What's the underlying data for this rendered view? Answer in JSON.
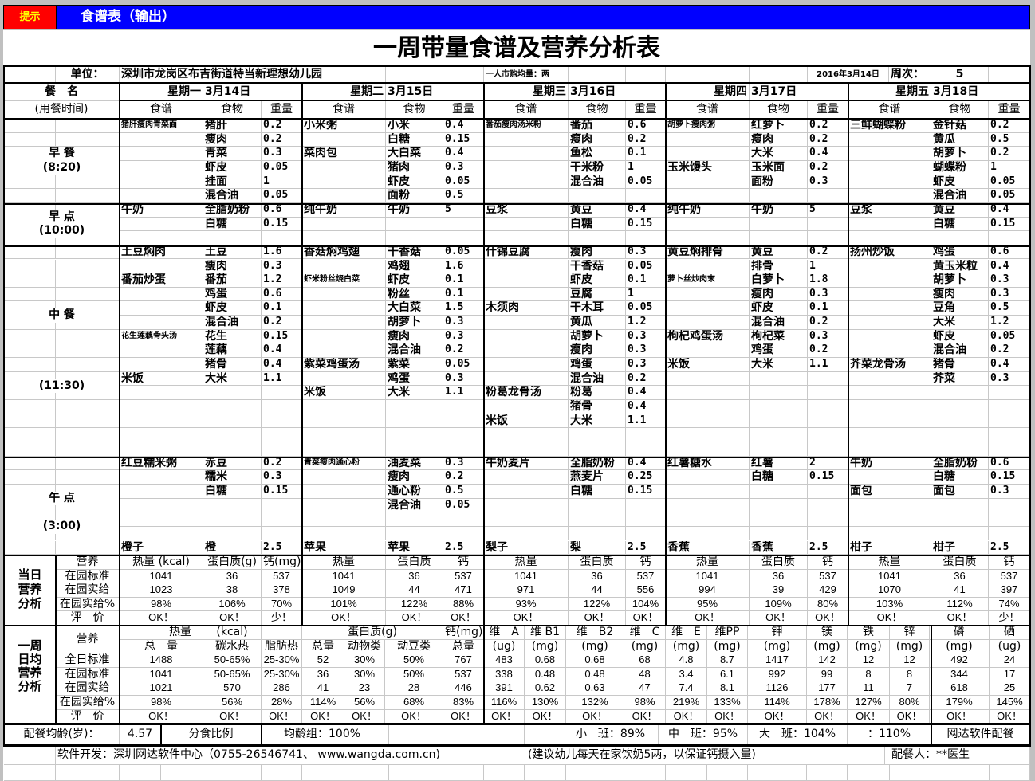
{
  "window": {
    "tip_button": "提示",
    "title": "食谱表（输出）",
    "accent": "#0000ff",
    "tip_color": "#ff0000"
  },
  "report": {
    "title": "一周带量食谱及营养分析表",
    "unit_label": "单位：",
    "unit_name": "深圳市龙岗区布吉街道特当新理想幼儿园",
    "purchase_note": "一人市购均量：两",
    "date": "2016年3月14日",
    "week_label": "周次：",
    "week_no": "5",
    "meal_header": "餐　名",
    "meal_time_header": "(用餐时间)",
    "col_recipe": "食谱",
    "col_food": "食物",
    "col_weight": "重量"
  },
  "meals": [
    {
      "key": "breakfast",
      "name": "早 餐",
      "time": "(8:20)"
    },
    {
      "key": "snack",
      "name": "早 点",
      "time": "(10:00)"
    },
    {
      "key": "lunch",
      "name": "中 餐",
      "time": "(11:30)"
    },
    {
      "key": "afternoon",
      "name": "午 点",
      "time": "(3:00)"
    }
  ],
  "days": [
    {
      "weekday": "星期一",
      "date": "3月14日",
      "breakfast": [
        [
          "猪肝瘦肉青菜面",
          "猪肝",
          "0.2"
        ],
        [
          "",
          "瘦肉",
          "0.2"
        ],
        [
          "",
          "青菜",
          "0.3"
        ],
        [
          "",
          "虾皮",
          "0.05"
        ],
        [
          "",
          "挂面",
          "1"
        ],
        [
          "",
          "混合油",
          "0.05"
        ]
      ],
      "snack": [
        [
          "牛奶",
          "全脂奶粉",
          "0.6"
        ],
        [
          "",
          "白糖",
          "0.15"
        ]
      ],
      "lunch": [
        [
          "土豆焖肉",
          "土豆",
          "1.6"
        ],
        [
          "",
          "瘦肉",
          "0.3"
        ],
        [
          "番茄炒蛋",
          "番茄",
          "1.2"
        ],
        [
          "",
          "鸡蛋",
          "0.6"
        ],
        [
          "",
          "虾皮",
          "0.1"
        ],
        [
          "",
          "混合油",
          "0.2"
        ],
        [
          "花生莲藕骨头汤",
          "花生",
          "0.15"
        ],
        [
          "",
          "莲藕",
          "0.4"
        ],
        [
          "",
          "猪骨",
          "0.4"
        ],
        [
          "米饭",
          "大米",
          "1.1"
        ]
      ],
      "afternoon": [
        [
          "红豆糯米粥",
          "赤豆",
          "0.2"
        ],
        [
          "",
          "糯米",
          "0.3"
        ],
        [
          "",
          "白糖",
          "0.15"
        ],
        [
          "",
          "",
          ""
        ],
        [
          "",
          "",
          ""
        ],
        [
          "",
          "",
          ""
        ],
        [
          "橙子",
          "橙",
          "2.5"
        ]
      ],
      "nutrition": {
        "headers": [
          "热量 (kcal)",
          "蛋白质(g)",
          "钙(mg)"
        ],
        "standard": [
          "1041",
          "36",
          "537"
        ],
        "actual": [
          "1023",
          "38",
          "378"
        ],
        "percent": [
          "98%",
          "106%",
          "70%"
        ],
        "evaluation": [
          "OK！",
          "OK！",
          "少！"
        ]
      }
    },
    {
      "weekday": "星期二",
      "date": "3月15日",
      "breakfast": [
        [
          "小米粥",
          "小米",
          "0.4"
        ],
        [
          "",
          "白糖",
          "0.15"
        ],
        [
          "菜肉包",
          "大白菜",
          "0.4"
        ],
        [
          "",
          "猪肉",
          "0.3"
        ],
        [
          "",
          "虾皮",
          "0.05"
        ],
        [
          "",
          "面粉",
          "0.5"
        ]
      ],
      "snack": [
        [
          "纯牛奶",
          "牛奶",
          "5"
        ]
      ],
      "lunch": [
        [
          "香菇焖鸡翅",
          "干香菇",
          "0.05"
        ],
        [
          "",
          "鸡翅",
          "1.6"
        ],
        [
          "虾米粉丝烧白菜",
          "虾皮",
          "0.1"
        ],
        [
          "",
          "粉丝",
          "0.1"
        ],
        [
          "",
          "大白菜",
          "1.5"
        ],
        [
          "",
          "胡萝卜",
          "0.3"
        ],
        [
          "",
          "瘦肉",
          "0.3"
        ],
        [
          "",
          "混合油",
          "0.2"
        ],
        [
          "紫菜鸡蛋汤",
          "紫菜",
          "0.05"
        ],
        [
          "",
          "鸡蛋",
          "0.3"
        ],
        [
          "米饭",
          "大米",
          "1.1"
        ]
      ],
      "afternoon": [
        [
          "青菜瘦肉通心粉",
          "油麦菜",
          "0.3"
        ],
        [
          "",
          "瘦肉",
          "0.2"
        ],
        [
          "",
          "通心粉",
          "0.5"
        ],
        [
          "",
          "混合油",
          "0.05"
        ],
        [
          "",
          "",
          ""
        ],
        [
          "",
          "",
          ""
        ],
        [
          "苹果",
          "苹果",
          "2.5"
        ]
      ],
      "nutrition": {
        "headers": [
          "热量",
          "蛋白质",
          "钙"
        ],
        "standard": [
          "1041",
          "36",
          "537"
        ],
        "actual": [
          "1049",
          "44",
          "471"
        ],
        "percent": [
          "101%",
          "122%",
          "88%"
        ],
        "evaluation": [
          "OK！",
          "OK！",
          "OK！"
        ]
      }
    },
    {
      "weekday": "星期三",
      "date": "3月16日",
      "breakfast": [
        [
          "番茄瘦肉汤米粉",
          "番茄",
          "0.6"
        ],
        [
          "",
          "瘦肉",
          "0.2"
        ],
        [
          "",
          "鱼松",
          "0.1"
        ],
        [
          "",
          "干米粉",
          "1"
        ],
        [
          "",
          "混合油",
          "0.05"
        ]
      ],
      "snack": [
        [
          "豆浆",
          "黄豆",
          "0.4"
        ],
        [
          "",
          "白糖",
          "0.15"
        ]
      ],
      "lunch": [
        [
          "什锦豆腐",
          "瘦肉",
          "0.3"
        ],
        [
          "",
          "干香菇",
          "0.05"
        ],
        [
          "",
          "虾皮",
          "0.1"
        ],
        [
          "",
          "豆腐",
          "1"
        ],
        [
          "木须肉",
          "干木耳",
          "0.05"
        ],
        [
          "",
          "黄瓜",
          "1.2"
        ],
        [
          "",
          "胡萝卜",
          "0.3"
        ],
        [
          "",
          "瘦肉",
          "0.3"
        ],
        [
          "",
          "鸡蛋",
          "0.3"
        ],
        [
          "",
          "混合油",
          "0.2"
        ],
        [
          "粉葛龙骨汤",
          "粉葛",
          "0.4"
        ],
        [
          "",
          "猪骨",
          "0.4"
        ],
        [
          "米饭",
          "大米",
          "1.1"
        ]
      ],
      "afternoon": [
        [
          "牛奶麦片",
          "全脂奶粉",
          "0.4"
        ],
        [
          "",
          "燕麦片",
          "0.25"
        ],
        [
          "",
          "白糖",
          "0.15"
        ],
        [
          "",
          "",
          ""
        ],
        [
          "",
          "",
          ""
        ],
        [
          "",
          "",
          ""
        ],
        [
          "梨子",
          "梨",
          "2.5"
        ]
      ],
      "nutrition": {
        "headers": [
          "热量",
          "蛋白质",
          "钙"
        ],
        "standard": [
          "1041",
          "36",
          "537"
        ],
        "actual": [
          "971",
          "44",
          "556"
        ],
        "percent": [
          "93%",
          "122%",
          "104%"
        ],
        "evaluation": [
          "OK！",
          "OK！",
          "OK！"
        ]
      }
    },
    {
      "weekday": "星期四",
      "date": "3月17日",
      "breakfast": [
        [
          "胡萝卜瘦肉粥",
          "红萝卜",
          "0.2"
        ],
        [
          "",
          "瘦肉",
          "0.2"
        ],
        [
          "",
          "大米",
          "0.4"
        ],
        [
          "玉米馒头",
          "玉米面",
          "0.2"
        ],
        [
          "",
          "面粉",
          "0.3"
        ]
      ],
      "snack": [
        [
          "纯牛奶",
          "牛奶",
          "5"
        ]
      ],
      "lunch": [
        [
          "黄豆焖排骨",
          "黄豆",
          "0.2"
        ],
        [
          "",
          "排骨",
          "1"
        ],
        [
          "萝卜丝炒肉末",
          "白萝卜",
          "1.8"
        ],
        [
          "",
          "瘦肉",
          "0.3"
        ],
        [
          "",
          "虾皮",
          "0.1"
        ],
        [
          "",
          "混合油",
          "0.2"
        ],
        [
          "枸杞鸡蛋汤",
          "枸杞菜",
          "0.3"
        ],
        [
          "",
          "鸡蛋",
          "0.2"
        ],
        [
          "米饭",
          "大米",
          "1.1"
        ]
      ],
      "afternoon": [
        [
          "红薯糖水",
          "红薯",
          "2"
        ],
        [
          "",
          "白糖",
          "0.15"
        ],
        [
          "",
          "",
          ""
        ],
        [
          "",
          "",
          ""
        ],
        [
          "",
          "",
          ""
        ],
        [
          "",
          "",
          ""
        ],
        [
          "香蕉",
          "香蕉",
          "2.5"
        ]
      ],
      "nutrition": {
        "headers": [
          "热量",
          "蛋白质",
          "钙"
        ],
        "standard": [
          "1041",
          "36",
          "537"
        ],
        "actual": [
          "994",
          "39",
          "429"
        ],
        "percent": [
          "95%",
          "109%",
          "80%"
        ],
        "evaluation": [
          "OK！",
          "OK！",
          "OK！"
        ]
      }
    },
    {
      "weekday": "星期五",
      "date": "3月18日",
      "breakfast": [
        [
          "三鲜蝴蝶粉",
          "金针菇",
          "0.2"
        ],
        [
          "",
          "黄瓜",
          "0.5"
        ],
        [
          "",
          "胡萝卜",
          "0.2"
        ],
        [
          "",
          "蝴蝶粉",
          "1"
        ],
        [
          "",
          "虾皮",
          "0.05"
        ],
        [
          "",
          "混合油",
          "0.05"
        ]
      ],
      "snack": [
        [
          "豆浆",
          "黄豆",
          "0.4"
        ],
        [
          "",
          "白糖",
          "0.15"
        ]
      ],
      "lunch": [
        [
          "扬州炒饭",
          "鸡蛋",
          "0.6"
        ],
        [
          "",
          "黄玉米粒",
          "0.4"
        ],
        [
          "",
          "胡萝卜",
          "0.3"
        ],
        [
          "",
          "瘦肉",
          "0.3"
        ],
        [
          "",
          "豆角",
          "0.5"
        ],
        [
          "",
          "大米",
          "1.2"
        ],
        [
          "",
          "虾皮",
          "0.05"
        ],
        [
          "",
          "混合油",
          "0.2"
        ],
        [
          "芥菜龙骨汤",
          "猪骨",
          "0.4"
        ],
        [
          "",
          "芥菜",
          "0.3"
        ]
      ],
      "afternoon": [
        [
          "牛奶",
          "全脂奶粉",
          "0.6"
        ],
        [
          "",
          "白糖",
          "0.15"
        ],
        [
          "面包",
          "面包",
          "0.3"
        ],
        [
          "",
          "",
          ""
        ],
        [
          "",
          "",
          ""
        ],
        [
          "",
          "",
          ""
        ],
        [
          "柑子",
          "柑子",
          "2.5"
        ]
      ],
      "nutrition": {
        "headers": [
          "热量",
          "蛋白质",
          "钙"
        ],
        "standard": [
          "1041",
          "36",
          "537"
        ],
        "actual": [
          "1070",
          "41",
          "397"
        ],
        "percent": [
          "103%",
          "112%",
          "74%"
        ],
        "evaluation": [
          "OK！",
          "OK！",
          "少！"
        ]
      }
    }
  ],
  "daily_analysis": {
    "label_lines": [
      "当日",
      "营养",
      "分析"
    ],
    "header": "营养",
    "rows": [
      "在园标准",
      "在园实给",
      "在园实给%",
      "评　价"
    ]
  },
  "weekly_analysis": {
    "label_lines": [
      "一周",
      "日均",
      "营养",
      "分析"
    ],
    "header": "营养",
    "group_row": [
      "热量",
      "(kcal)",
      "",
      "蛋白质(g)",
      "钙(mg)",
      "维　A",
      "维 B1",
      "维　B2",
      "维　C",
      "维　E",
      "维PP",
      "钾",
      "镁",
      "铁",
      "锌",
      "磷",
      "硒"
    ],
    "sub_row": [
      "总　量",
      "碳水热",
      "脂肪热",
      "总量",
      "动物类",
      "动豆类",
      "总量",
      "(ug)",
      "(mg)",
      "(mg)",
      "(mg)",
      "(mg)",
      "(mg)",
      "(mg)",
      "(mg)",
      "(mg)",
      "(mg)",
      "(mg)",
      "(ug)"
    ],
    "rows": [
      {
        "label": "全日标准",
        "values": [
          "1488",
          "50-65%",
          "25-30%",
          "52",
          "30%",
          "50%",
          "767",
          "483",
          "0.68",
          "0.68",
          "68",
          "4.8",
          "8.7",
          "1417",
          "142",
          "12",
          "12",
          "492",
          "24"
        ]
      },
      {
        "label": "在园标准",
        "values": [
          "1041",
          "50-65%",
          "25-30%",
          "36",
          "30%",
          "50%",
          "537",
          "338",
          "0.48",
          "0.48",
          "48",
          "3.4",
          "6.1",
          "992",
          "99",
          "8",
          "8",
          "344",
          "17"
        ]
      },
      {
        "label": "在园实给",
        "values": [
          "1021",
          "570",
          "286",
          "41",
          "23",
          "28",
          "446",
          "391",
          "0.62",
          "0.63",
          "47",
          "7.4",
          "8.1",
          "1126",
          "177",
          "11",
          "7",
          "618",
          "25"
        ]
      },
      {
        "label": "在园实给%",
        "values": [
          "98%",
          "56%",
          "28%",
          "114%",
          "56%",
          "68%",
          "83%",
          "116%",
          "130%",
          "132%",
          "98%",
          "219%",
          "133%",
          "114%",
          "178%",
          "127%",
          "80%",
          "179%",
          "145%"
        ]
      },
      {
        "label": "评　价",
        "values": [
          "OK！",
          "OK！",
          "OK！",
          "OK！",
          "OK！",
          "OK！",
          "OK！",
          "OK！",
          "OK！",
          "OK！",
          "OK！",
          "OK！",
          "OK！",
          "OK！",
          "OK！",
          "OK！",
          "OK！",
          "OK！",
          "OK！"
        ]
      }
    ]
  },
  "age_row": {
    "avg_age_label": "配餐均龄(岁)：",
    "avg_age": "4.57",
    "ratio_label": "分食比例",
    "avg_group": "均龄组：100%",
    "small_class": "小　班：89%",
    "middle_class": "中　班：95%",
    "large_class": "大　班：104%",
    "other_class": "：110%",
    "brand": "网达软件配餐"
  },
  "footer": {
    "developer": "软件开发：深圳网达软件中心（0755-26546741、 www.wangda.com.cn)",
    "advice": "(建议幼儿每天在家饮奶5两，以保证钙摄入量)",
    "planner": "配餐人：**医生"
  }
}
